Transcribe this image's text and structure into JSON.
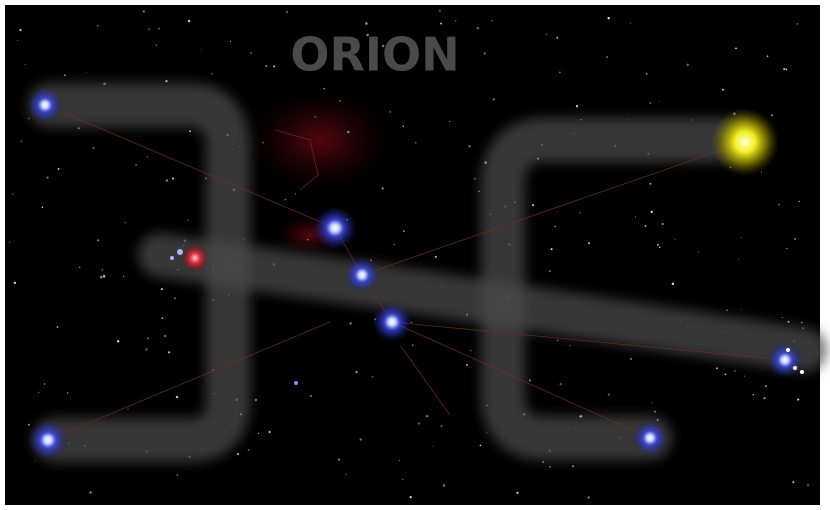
{
  "title": "ORION"
}
